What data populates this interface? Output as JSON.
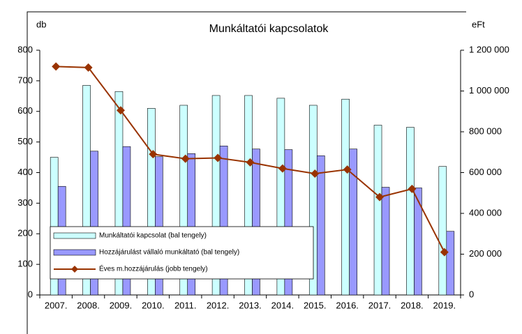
{
  "chart_data": {
    "type": "bar",
    "title": "Munkáltatói kapcsolatok",
    "y_label": "db",
    "y2_label": "eFt",
    "categories": [
      "2007.",
      "2008.",
      "2009.",
      "2010.",
      "2011.",
      "2012.",
      "2013.",
      "2014.",
      "2015.",
      "2016.",
      "2017.",
      "2018.",
      "2019."
    ],
    "series": [
      {
        "name": "Munkáltatói kapcsolat (bal tengely)",
        "type": "bar",
        "color": "#ccffff",
        "values": [
          450,
          685,
          665,
          610,
          620,
          652,
          652,
          643,
          620,
          640,
          555,
          548,
          420
        ]
      },
      {
        "name": "Hozzájárulást vállaló munkáltató (bal tengely)",
        "type": "bar",
        "color": "#9999ff",
        "values": [
          355,
          470,
          485,
          452,
          462,
          487,
          477,
          475,
          455,
          477,
          352,
          350,
          208
        ]
      },
      {
        "name": "Éves m.hozzájárulás (jobb tengely)",
        "type": "line",
        "axis": "y2",
        "color": "#993300",
        "values": [
          1120000,
          1115000,
          905000,
          690000,
          668000,
          672000,
          650000,
          620000,
          595000,
          615000,
          480000,
          520000,
          210000
        ]
      }
    ],
    "ylim": [
      0,
      800
    ],
    "yticks": [
      0,
      100,
      200,
      300,
      400,
      500,
      600,
      700,
      800
    ],
    "y2lim": [
      0,
      1200000
    ],
    "y2ticks": [
      0,
      {
        "value": 200000,
        "label": "200 000"
      },
      {
        "value": 400000,
        "label": "400 000"
      },
      {
        "value": 600000,
        "label": "600 000"
      },
      {
        "value": 800000,
        "label": "800 000"
      },
      {
        "value": 1000000,
        "label": "1 000 000"
      },
      {
        "value": 1200000,
        "label": "1 200 000"
      }
    ],
    "legend": "lower left",
    "grid": false
  }
}
